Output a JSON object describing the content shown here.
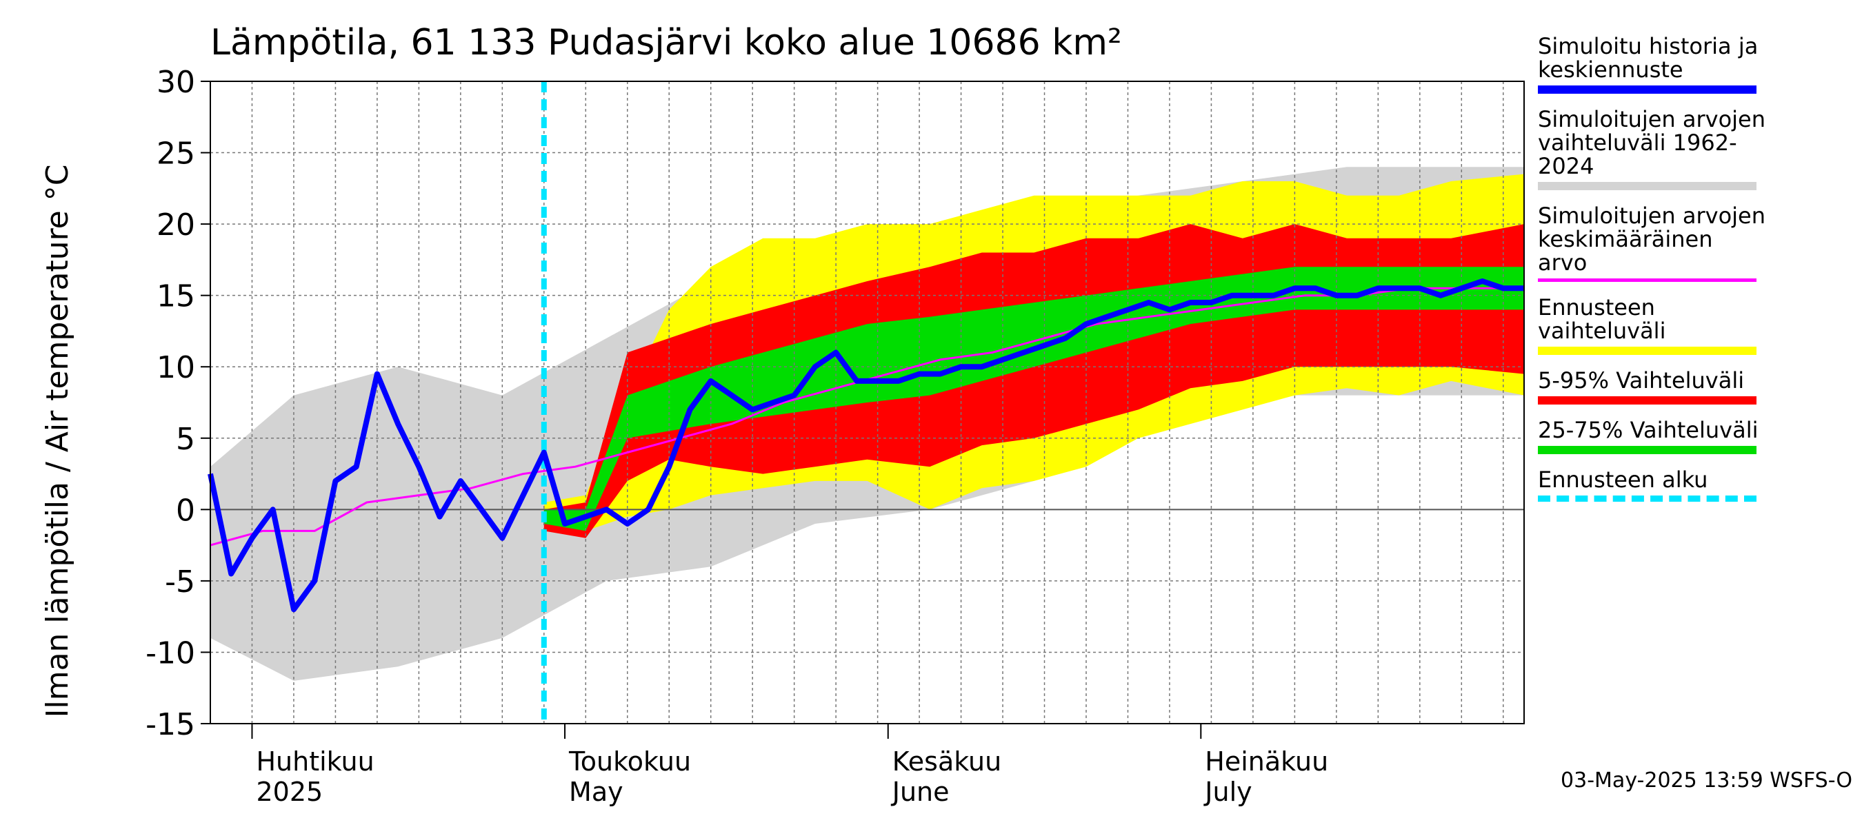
{
  "title": "Lämpötila, 61 133 Pudasjärvi koko alue 10686 km²",
  "footer": "03-May-2025 13:59 WSFS-O",
  "legend": [
    {
      "label": "Simuloitu historia ja\nkeskiennuste",
      "color": "#0000ff",
      "style": "line"
    },
    {
      "label": "Simuloitujen arvojen\nvaihteluväli 1962-2024",
      "color": "#d3d3d3",
      "style": "band"
    },
    {
      "label": "Simuloitujen arvojen\nkeskimääräinen arvo",
      "color": "#ff00ff",
      "style": "thin"
    },
    {
      "label": "Ennusteen vaihteluväli",
      "color": "#ffff00",
      "style": "band"
    },
    {
      "label": "5-95% Vaihteluväli",
      "color": "#ff0000",
      "style": "band"
    },
    {
      "label": "25-75% Vaihteluväli",
      "color": "#00dd00",
      "style": "band"
    },
    {
      "label": "Ennusteen alku",
      "color": "#00e5ff",
      "style": "dashed"
    }
  ],
  "chart_data": {
    "type": "area",
    "title": "Lämpötila, 61 133 Pudasjärvi koko alue 10686 km²",
    "ylabel": "Ilman lämpötila / Air temperature   °C",
    "ylim": [
      -15,
      30
    ],
    "yticks": [
      -15,
      -10,
      -5,
      0,
      5,
      10,
      15,
      20,
      25,
      30
    ],
    "xlim": [
      "2025-03-28",
      "2025-08-01"
    ],
    "month_labels": [
      {
        "top": "Huhtikuu",
        "bottom": "2025",
        "date": "2025-04-01"
      },
      {
        "top": "Toukokuu",
        "bottom": "May",
        "date": "2025-05-01"
      },
      {
        "top": "Kesäkuu",
        "bottom": "June",
        "date": "2025-06-01"
      },
      {
        "top": "Heinäkuu",
        "bottom": "July",
        "date": "2025-07-01"
      }
    ],
    "forecast_start": "2025-04-29",
    "grid": true,
    "legend_position": "right",
    "series": [
      {
        "name": "Simuloitu historia ja keskiennuste",
        "color": "#0000ff",
        "x": [
          "2025-03-28",
          "2025-03-30",
          "2025-04-01",
          "2025-04-03",
          "2025-04-05",
          "2025-04-07",
          "2025-04-09",
          "2025-04-11",
          "2025-04-13",
          "2025-04-15",
          "2025-04-17",
          "2025-04-19",
          "2025-04-21",
          "2025-04-23",
          "2025-04-25",
          "2025-04-27",
          "2025-04-29",
          "2025-05-01",
          "2025-05-03",
          "2025-05-05",
          "2025-05-07",
          "2025-05-09",
          "2025-05-11",
          "2025-05-13",
          "2025-05-15",
          "2025-05-17",
          "2025-05-19",
          "2025-05-21",
          "2025-05-23",
          "2025-05-25",
          "2025-05-27",
          "2025-05-29",
          "2025-05-31",
          "2025-06-02",
          "2025-06-04",
          "2025-06-06",
          "2025-06-08",
          "2025-06-10",
          "2025-06-12",
          "2025-06-14",
          "2025-06-16",
          "2025-06-18",
          "2025-06-20",
          "2025-06-22",
          "2025-06-24",
          "2025-06-26",
          "2025-06-28",
          "2025-06-30",
          "2025-07-02",
          "2025-07-04",
          "2025-07-06",
          "2025-07-08",
          "2025-07-10",
          "2025-07-12",
          "2025-07-14",
          "2025-07-16",
          "2025-07-18",
          "2025-07-20",
          "2025-07-22",
          "2025-07-24",
          "2025-07-26",
          "2025-07-28",
          "2025-07-30",
          "2025-08-01"
        ],
        "values": [
          2.5,
          -4.5,
          -2,
          0,
          -7,
          -5,
          2,
          3,
          9.5,
          6,
          3,
          -0.5,
          2,
          0,
          -2,
          1,
          4,
          -1,
          -0.5,
          0,
          -1,
          0,
          3,
          7,
          9,
          8,
          7,
          7.5,
          8,
          10,
          11,
          9,
          9,
          9,
          9.5,
          9.5,
          10,
          10,
          10.5,
          11,
          11.5,
          12,
          13,
          13.5,
          14,
          14.5,
          14,
          14.5,
          14.5,
          15,
          15,
          15,
          15.5,
          15.5,
          15,
          15,
          15.5,
          15.5,
          15.5,
          15,
          15.5,
          16,
          15.5,
          15.5
        ]
      },
      {
        "name": "Simuloitujen arvojen keskimääräinen arvo",
        "color": "#ff00ff",
        "x": [
          "2025-03-28",
          "2025-04-02",
          "2025-04-07",
          "2025-04-12",
          "2025-04-17",
          "2025-04-22",
          "2025-04-27",
          "2025-05-02",
          "2025-05-07",
          "2025-05-12",
          "2025-05-17",
          "2025-05-22",
          "2025-05-27",
          "2025-06-01",
          "2025-06-06",
          "2025-06-11",
          "2025-06-16",
          "2025-06-21",
          "2025-06-26",
          "2025-07-01",
          "2025-07-06",
          "2025-07-11",
          "2025-07-16",
          "2025-07-21",
          "2025-07-26",
          "2025-08-01"
        ],
        "values": [
          -2.5,
          -1.5,
          -1.5,
          0.5,
          1,
          1.5,
          2.5,
          3,
          4,
          5,
          6,
          7.5,
          8.5,
          9.5,
          10.5,
          11,
          12,
          13,
          13.5,
          14,
          14.5,
          15,
          15,
          15.5,
          15.5,
          15.5
        ]
      }
    ],
    "bands": [
      {
        "name": "Simuloitujen arvojen vaihteluväli 1962-2024",
        "color": "#d3d3d3",
        "x": [
          "2025-03-28",
          "2025-04-05",
          "2025-04-15",
          "2025-04-25",
          "2025-05-05",
          "2025-05-15",
          "2025-05-25",
          "2025-06-05",
          "2025-06-15",
          "2025-06-25",
          "2025-07-05",
          "2025-07-15",
          "2025-07-25",
          "2025-08-01"
        ],
        "low": [
          -9,
          -12,
          -11,
          -9,
          -5,
          -4,
          -1,
          0,
          2,
          5,
          8,
          8,
          8,
          8
        ],
        "high": [
          3,
          8,
          10,
          8,
          12,
          16,
          18,
          19,
          21,
          22,
          23,
          24,
          24,
          24
        ]
      },
      {
        "name": "Ennusteen vaihteluväli",
        "color": "#ffff00",
        "x": [
          "2025-04-29",
          "2025-05-03",
          "2025-05-07",
          "2025-05-11",
          "2025-05-15",
          "2025-05-20",
          "2025-05-25",
          "2025-05-30",
          "2025-06-05",
          "2025-06-10",
          "2025-06-15",
          "2025-06-20",
          "2025-06-25",
          "2025-06-30",
          "2025-07-05",
          "2025-07-10",
          "2025-07-15",
          "2025-07-20",
          "2025-07-25",
          "2025-08-01"
        ],
        "low": [
          -1,
          -1.5,
          -0.5,
          0,
          1,
          1.5,
          2,
          2,
          0,
          1.5,
          2,
          3,
          5,
          6,
          7,
          8,
          8.5,
          8,
          9,
          8
        ],
        "high": [
          0.5,
          1,
          8,
          14,
          17,
          19,
          19,
          20,
          20,
          21,
          22,
          22,
          22,
          22,
          23,
          23,
          22,
          22,
          23,
          23.5
        ]
      },
      {
        "name": "5-95% Vaihteluväli",
        "color": "#ff0000",
        "x": [
          "2025-04-29",
          "2025-05-03",
          "2025-05-07",
          "2025-05-11",
          "2025-05-15",
          "2025-05-20",
          "2025-05-25",
          "2025-05-30",
          "2025-06-05",
          "2025-06-10",
          "2025-06-15",
          "2025-06-20",
          "2025-06-25",
          "2025-06-30",
          "2025-07-05",
          "2025-07-10",
          "2025-07-15",
          "2025-07-20",
          "2025-07-25",
          "2025-08-01"
        ],
        "low": [
          -1.5,
          -2,
          2,
          3.5,
          3,
          2.5,
          3,
          3.5,
          3,
          4.5,
          5,
          6,
          7,
          8.5,
          9,
          10,
          10,
          10,
          10,
          9.5
        ],
        "high": [
          0,
          0.5,
          11,
          12,
          13,
          14,
          15,
          16,
          17,
          18,
          18,
          19,
          19,
          20,
          19,
          20,
          19,
          19,
          19,
          20
        ]
      },
      {
        "name": "25-75% Vaihteluväli",
        "color": "#00dd00",
        "x": [
          "2025-04-29",
          "2025-05-03",
          "2025-05-07",
          "2025-05-11",
          "2025-05-15",
          "2025-05-20",
          "2025-05-25",
          "2025-05-30",
          "2025-06-05",
          "2025-06-10",
          "2025-06-15",
          "2025-06-20",
          "2025-06-25",
          "2025-06-30",
          "2025-07-05",
          "2025-07-10",
          "2025-07-15",
          "2025-07-20",
          "2025-07-25",
          "2025-08-01"
        ],
        "low": [
          -1,
          -1.5,
          5,
          5.5,
          6,
          6.5,
          7,
          7.5,
          8,
          9,
          10,
          11,
          12,
          13,
          13.5,
          14,
          14,
          14,
          14,
          14
        ],
        "high": [
          0,
          0,
          8,
          9,
          10,
          11,
          12,
          13,
          13.5,
          14,
          14.5,
          15,
          15.5,
          16,
          16.5,
          17,
          17,
          17,
          17,
          17
        ]
      }
    ]
  }
}
